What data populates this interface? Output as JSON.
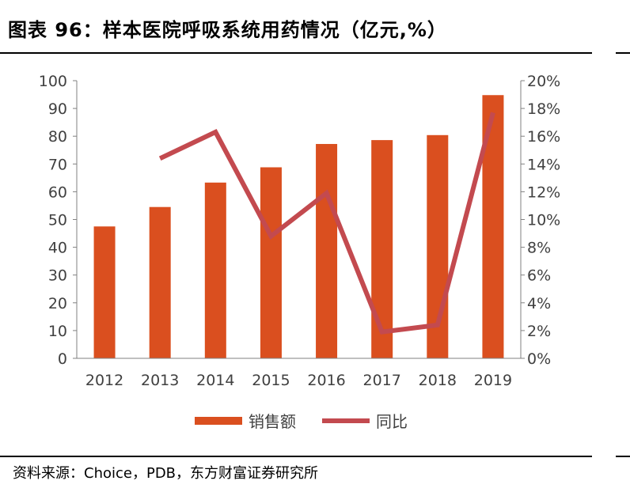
{
  "header": {
    "title": "图表 96：样本医院呼吸系统用药情况（亿元,%）"
  },
  "footer": {
    "source": "资料来源：Choice，PDB，东方财富证券研究所"
  },
  "colors": {
    "bar": "#DA4F1F",
    "line": "#C34A4F",
    "axis": "#808080"
  },
  "chart_data": {
    "type": "bar",
    "categories": [
      "2012",
      "2013",
      "2014",
      "2015",
      "2016",
      "2017",
      "2018",
      "2019"
    ],
    "series": [
      {
        "name": "销售额",
        "type": "bar",
        "axis": "left",
        "values": [
          47.5,
          54.5,
          63.3,
          68.8,
          77.2,
          78.6,
          80.4,
          94.8
        ]
      },
      {
        "name": "同比",
        "type": "line",
        "axis": "right",
        "values": [
          null,
          14.4,
          16.3,
          8.8,
          11.9,
          1.9,
          2.4,
          17.7
        ]
      }
    ],
    "ylim": [
      0,
      100
    ],
    "y2lim": [
      0,
      20
    ],
    "yticks": [
      "0",
      "10",
      "20",
      "30",
      "40",
      "50",
      "60",
      "70",
      "80",
      "90",
      "100"
    ],
    "y2ticks": [
      "0%",
      "2%",
      "4%",
      "6%",
      "8%",
      "10%",
      "12%",
      "14%",
      "16%",
      "18%",
      "20%"
    ],
    "legend": "bottom",
    "grid": false
  }
}
